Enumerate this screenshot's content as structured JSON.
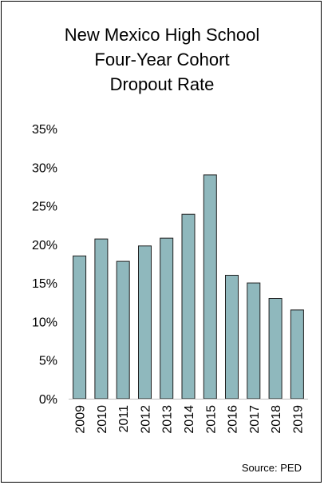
{
  "chart_data": {
    "type": "bar",
    "title_lines": [
      "New Mexico High School",
      "Four-Year Cohort",
      "Dropout Rate"
    ],
    "categories": [
      "2009",
      "2010",
      "2011",
      "2012",
      "2013",
      "2014",
      "2015",
      "2016",
      "2017",
      "2018",
      "2019"
    ],
    "values": [
      18.5,
      20.7,
      17.8,
      19.8,
      20.8,
      23.9,
      29.0,
      16.0,
      15.0,
      13.0,
      11.5
    ],
    "ylim": [
      0,
      35
    ],
    "yticks": [
      "0%",
      "5%",
      "10%",
      "15%",
      "20%",
      "25%",
      "30%",
      "35%"
    ],
    "xlabel": "",
    "ylabel": "",
    "grid": false,
    "bar_color": "#8fb8bd",
    "bar_edge_color": "#1f1f1f",
    "source": "Source: PED"
  }
}
